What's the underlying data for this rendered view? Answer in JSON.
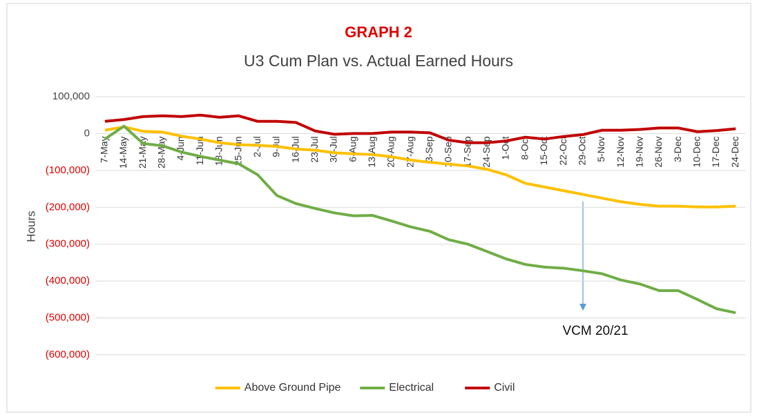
{
  "chart_data": {
    "type": "line",
    "title": "GRAPH 2",
    "subtitle": "U3 Cum Plan vs. Actual Earned Hours",
    "y_label": "Hours",
    "annotation": "VCM 20/21",
    "categories": [
      "7-May",
      "14-May",
      "21-May",
      "28-May",
      "4-Jun",
      "11-Jun",
      "18-Jun",
      "25-Jun",
      "2-Jul",
      "9-Jul",
      "16-Jul",
      "23-Jul",
      "30-Jul",
      "6-Aug",
      "13-Aug",
      "20-Aug",
      "27-Aug",
      "3-Sep",
      "10-Sep",
      "17-Sep",
      "24-Sep",
      "1-Oct",
      "8-Oct",
      "15-Oct",
      "22-Oct",
      "29-Oct",
      "5-Nov",
      "12-Nov",
      "19-Nov",
      "26-Nov",
      "3-Dec",
      "10-Dec",
      "17-Dec",
      "24-Dec"
    ],
    "series": [
      {
        "name": "Above Ground Pipe",
        "color": "#ffc000",
        "values": [
          9000,
          18000,
          6000,
          4000,
          -7000,
          -15000,
          -25000,
          -30000,
          -32000,
          -35000,
          -42000,
          -45000,
          -52000,
          -55000,
          -57000,
          -63000,
          -72000,
          -78000,
          -83000,
          -88000,
          -97000,
          -112000,
          -135000,
          -145000,
          -155000,
          -165000,
          -175000,
          -185000,
          -192000,
          -197000,
          -197000,
          -199000,
          -199000,
          -197000
        ]
      },
      {
        "name": "Electrical",
        "color": "#70ad47",
        "values": [
          -15000,
          20000,
          -27000,
          -33000,
          -50000,
          -62000,
          -72000,
          -82000,
          -112000,
          -168000,
          -190000,
          -203000,
          -215000,
          -223000,
          -222000,
          -237000,
          -253000,
          -265000,
          -288000,
          -300000,
          -320000,
          -340000,
          -355000,
          -362000,
          -365000,
          -372000,
          -380000,
          -397000,
          -408000,
          -426000,
          -426000,
          -450000,
          -475000,
          -486000
        ]
      },
      {
        "name": "Civil",
        "color": "#c00000",
        "values": [
          33000,
          38000,
          46000,
          48000,
          46000,
          50000,
          44000,
          48000,
          33000,
          33000,
          30000,
          7000,
          -2000,
          0,
          0,
          4000,
          4000,
          2000,
          -18000,
          -25000,
          -25000,
          -20000,
          -10000,
          -15000,
          -8000,
          -3000,
          9000,
          9000,
          11000,
          15000,
          15000,
          5000,
          8000,
          13000
        ]
      }
    ],
    "ylim": [
      -600000,
      100000
    ],
    "yticks": [
      {
        "value": -600000,
        "label": "(600,000)"
      },
      {
        "value": -500000,
        "label": "(500,000)"
      },
      {
        "value": -400000,
        "label": "(400,000)"
      },
      {
        "value": -300000,
        "label": "(300,000)"
      },
      {
        "value": -200000,
        "label": "(200,000)"
      },
      {
        "value": -100000,
        "label": "(100,000)"
      },
      0,
      {
        "value": 100000,
        "label": "100,000"
      }
    ],
    "negative_tick_color": "#e00000",
    "grid": true,
    "legend": "bottom"
  }
}
